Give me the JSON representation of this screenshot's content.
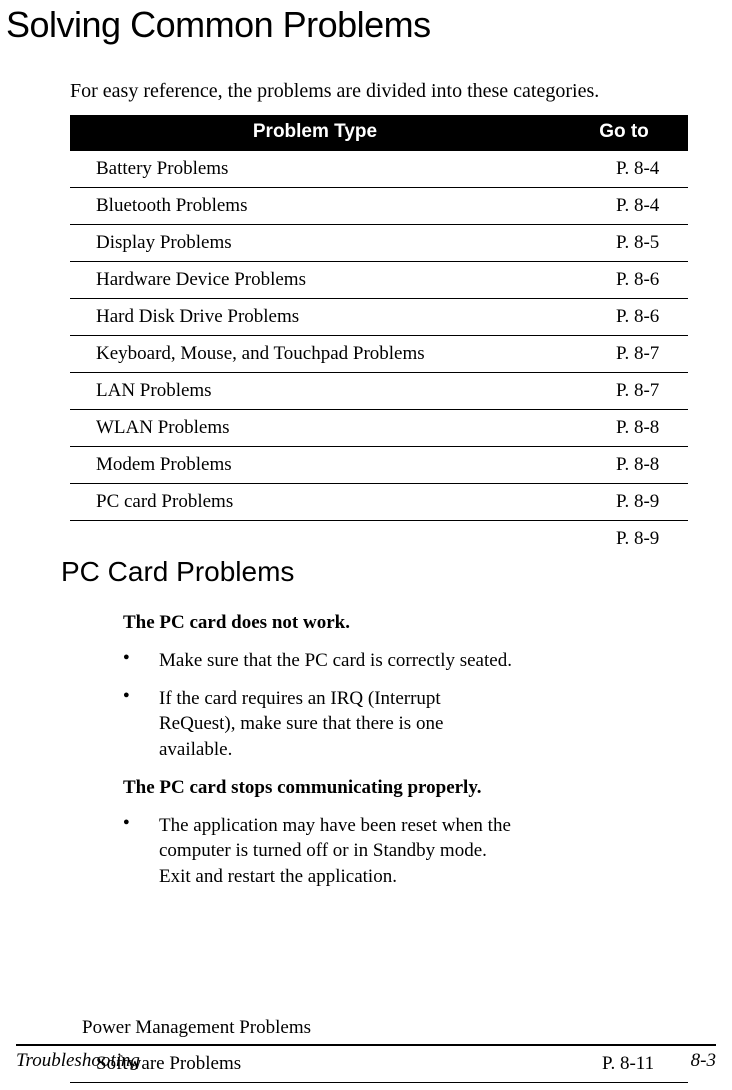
{
  "heading": "Solving Common Problems",
  "intro": "For easy reference, the problems are divided into these categories.",
  "table": {
    "header": {
      "type": "Problem Type",
      "goto": "Go to"
    },
    "header_bg": "#000000",
    "header_fg": "#ffffff",
    "rows": [
      {
        "type": "Battery Problems",
        "goto": "P. 8-4"
      },
      {
        "type": "Bluetooth Problems",
        "goto": "P. 8-4"
      },
      {
        "type": "Display Problems",
        "goto": "P. 8-5"
      },
      {
        "type": "Hardware Device Problems",
        "goto": "P. 8-6"
      },
      {
        "type": "Hard Disk Drive Problems",
        "goto": "P. 8-6"
      },
      {
        "type": "Keyboard, Mouse, and Touchpad Problems",
        "goto": "P. 8-7"
      },
      {
        "type": "LAN Problems",
        "goto": "P. 8-7"
      },
      {
        "type": "WLAN Problems",
        "goto": "P. 8-8"
      },
      {
        "type": "Modem Problems",
        "goto": "P. 8-8"
      },
      {
        "type": "PC card Problems",
        "goto": "P. 8-9"
      }
    ],
    "orphan_goto": "P. 8-9"
  },
  "popup": {
    "title": "PC Card Problems",
    "section1_title": "The PC card does not work.",
    "section1_items": [
      "Make sure that the PC card is correctly seated.",
      "If the card requires an IRQ (Interrupt ReQuest), make sure that there is one available."
    ],
    "section2_title": "The PC card stops communicating properly.",
    "section2_items": [
      "The application may have been reset when the computer is turned off or in Standby mode. Exit and restart the application."
    ]
  },
  "power_mgmt_row": "Power Management Problems",
  "software_row": {
    "type": "Software Problems",
    "goto": "P. 8-11"
  },
  "footer": {
    "left": "Troubleshooting",
    "right": "8-3"
  }
}
